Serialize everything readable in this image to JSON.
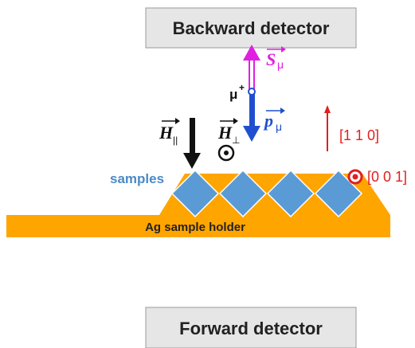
{
  "detectors": {
    "backward": "Backward detector",
    "forward": "Forward detector"
  },
  "labels": {
    "spin": {
      "symbol": "S",
      "subscript": "μ"
    },
    "muon": {
      "symbol": "μ",
      "superscript": "+"
    },
    "momentum": {
      "symbol": "p",
      "subscript": "μ"
    },
    "field_parallel": {
      "symbol": "H",
      "subscript": "||"
    },
    "field_perpendicular": {
      "symbol": "H",
      "subscript": "⊥"
    },
    "direction_110": "[1 1 0]",
    "direction_001": "[0 0 1]",
    "samples": "samples",
    "holder": "Ag sample holder"
  }
}
